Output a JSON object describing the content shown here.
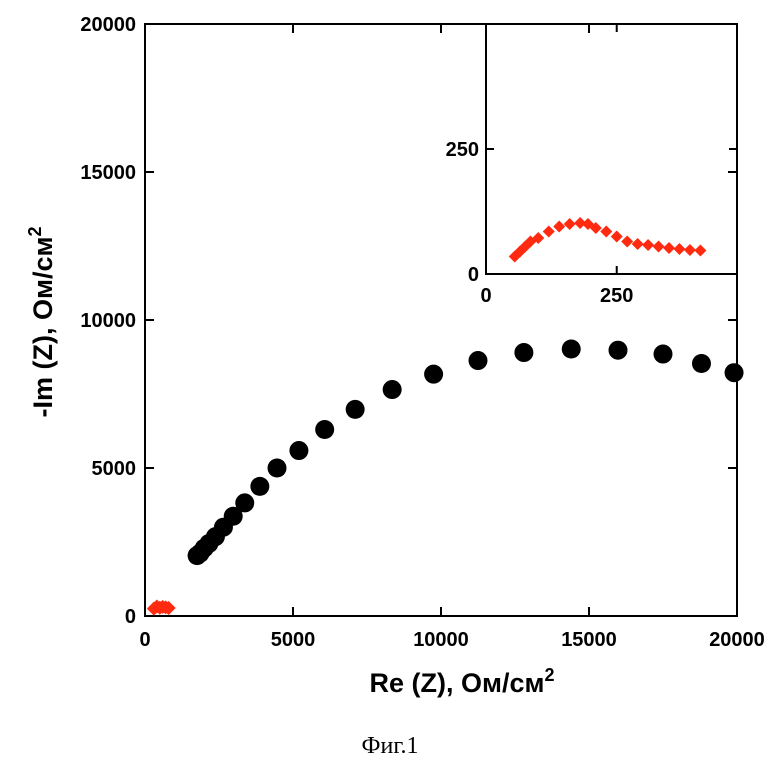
{
  "chart_data": [
    {
      "type": "scatter",
      "xlabel": "Re (Z), Ом/см",
      "xlabel_sup": "2",
      "ylabel": "-Im (Z), Ом/см",
      "ylabel_sup": "2",
      "xlim": [
        0,
        20000
      ],
      "ylim": [
        0,
        20000
      ],
      "xticks": [
        "0",
        "5000",
        "10000",
        "15000",
        "20000"
      ],
      "yticks": [
        "0",
        "5000",
        "10000",
        "15000",
        "20000"
      ],
      "xtick_values": [
        0,
        5000,
        10000,
        15000,
        20000
      ],
      "ytick_values": [
        0,
        5000,
        10000,
        15000,
        20000
      ],
      "grid": false,
      "series": [
        {
          "marker": "circle",
          "color": "#000000",
          "points": [
            [
              1760,
              2040
            ],
            [
              1860,
              2120
            ],
            [
              2000,
              2290
            ],
            [
              2160,
              2450
            ],
            [
              2380,
              2680
            ],
            [
              2650,
              3000
            ],
            [
              2980,
              3370
            ],
            [
              3370,
              3820
            ],
            [
              3880,
              4380
            ],
            [
              4460,
              5000
            ],
            [
              5200,
              5590
            ],
            [
              6070,
              6300
            ],
            [
              7100,
              6980
            ],
            [
              8350,
              7650
            ],
            [
              9750,
              8170
            ],
            [
              11250,
              8630
            ],
            [
              12800,
              8900
            ],
            [
              14400,
              9020
            ],
            [
              15980,
              8980
            ],
            [
              17500,
              8850
            ],
            [
              18800,
              8530
            ],
            [
              19900,
              8220
            ]
          ]
        },
        {
          "marker": "diamond",
          "color": "#ff2a10",
          "points": [
            [
              300,
              250
            ],
            [
              400,
              320
            ],
            [
              500,
              280
            ],
            [
              600,
              310
            ],
            [
              700,
              290
            ],
            [
              800,
              270
            ]
          ]
        }
      ]
    },
    {
      "type": "scatter",
      "inset": true,
      "xlim": [
        0,
        480
      ],
      "ylim": [
        0,
        500
      ],
      "xticks": [
        "0",
        "250"
      ],
      "yticks": [
        "0",
        "250"
      ],
      "xtick_values": [
        0,
        250
      ],
      "ytick_values": [
        0,
        250
      ],
      "grid": false,
      "series": [
        {
          "marker": "diamond",
          "color": "#ff2a10",
          "points": [
            [
              55,
              35
            ],
            [
              65,
              45
            ],
            [
              75,
              55
            ],
            [
              85,
              65
            ],
            [
              100,
              72
            ],
            [
              120,
              85
            ],
            [
              140,
              95
            ],
            [
              160,
              100
            ],
            [
              180,
              102
            ],
            [
              195,
              100
            ],
            [
              210,
              92
            ],
            [
              230,
              85
            ],
            [
              250,
              75
            ],
            [
              270,
              65
            ],
            [
              290,
              60
            ],
            [
              310,
              58
            ],
            [
              330,
              55
            ],
            [
              350,
              52
            ],
            [
              370,
              50
            ],
            [
              390,
              48
            ],
            [
              410,
              47
            ]
          ]
        }
      ]
    }
  ],
  "caption": "Фиг.1"
}
